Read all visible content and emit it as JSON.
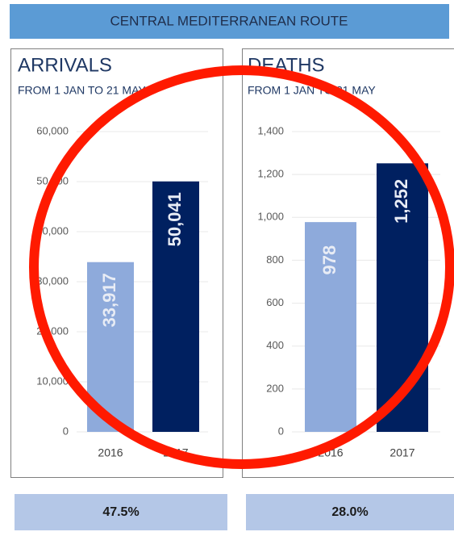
{
  "header": "CENTRAL MEDITERRANEAN ROUTE",
  "chart_data": [
    {
      "type": "bar",
      "title": "ARRIVALS",
      "subtitle": "FROM 1 JAN TO 21 MAY",
      "categories": [
        "2016",
        "2017"
      ],
      "values": [
        33917,
        50041
      ],
      "value_labels": [
        "33,917",
        "50,041"
      ],
      "colors": [
        "#8eaadb",
        "#002060"
      ],
      "ylim": [
        0,
        60000
      ],
      "yticks": [
        0,
        {
          "value": 10000,
          "label": "10,000"
        },
        {
          "value": 20000,
          "label": "20,000"
        },
        {
          "value": 30000,
          "label": "30,000"
        },
        {
          "value": 40000,
          "label": "40,000"
        },
        {
          "value": 50000,
          "label": "50,000"
        },
        {
          "value": 60000,
          "label": "60,000"
        }
      ],
      "grid": true
    },
    {
      "type": "bar",
      "title": "DEATHS",
      "subtitle": "FROM 1 JAN TO 21 MAY",
      "categories": [
        "2016",
        "2017"
      ],
      "values": [
        978,
        1252
      ],
      "value_labels": [
        "978",
        "1,252"
      ],
      "colors": [
        "#8eaadb",
        "#002060"
      ],
      "ylim": [
        0,
        1400
      ],
      "yticks": [
        0,
        200,
        400,
        600,
        800,
        {
          "value": 1000,
          "label": "1,000"
        },
        {
          "value": 1200,
          "label": "1,200"
        },
        {
          "value": 1400,
          "label": "1,400"
        }
      ],
      "grid": true
    }
  ],
  "footer": [
    "47.5%",
    "28.0%"
  ]
}
